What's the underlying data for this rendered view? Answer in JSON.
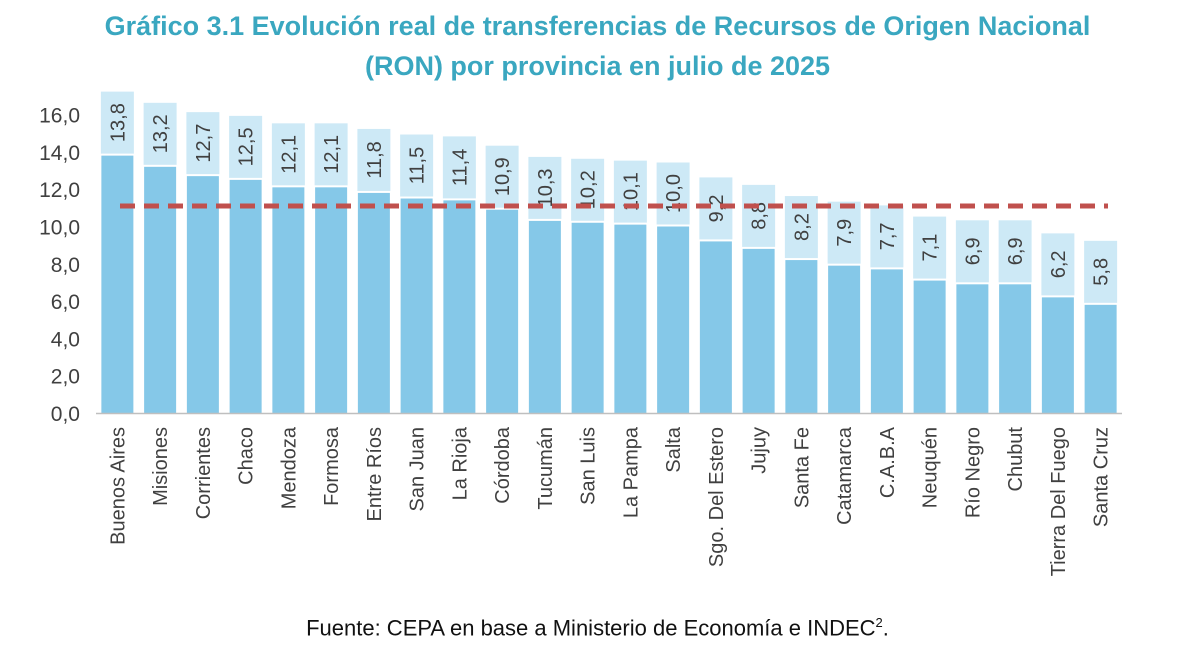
{
  "chart_data": {
    "type": "bar",
    "title_line1": "Gráfico 3.1 Evolución real de transferencias de Recursos de Origen Nacional",
    "title_line2": "(RON) por provincia en julio de 2025",
    "categories": [
      "Buenos Aires",
      "Misiones",
      "Corrientes",
      "Chaco",
      "Mendoza",
      "Formosa",
      "Entre Ríos",
      "San Juan",
      "La Rioja",
      "Córdoba",
      "Tucumán",
      "San Luis",
      "La Pampa",
      "Salta",
      "Sgo. Del Estero",
      "Jujuy",
      "Santa Fe",
      "Catamarca",
      "C.A.B.A",
      "Neuquén",
      "Río Negro",
      "Chubut",
      "Tierra Del Fuego",
      "Santa Cruz"
    ],
    "values": [
      13.8,
      13.2,
      12.7,
      12.5,
      12.1,
      12.1,
      11.8,
      11.5,
      11.4,
      10.9,
      10.3,
      10.2,
      10.1,
      10.0,
      9.2,
      8.8,
      8.2,
      7.9,
      7.7,
      7.1,
      6.9,
      6.9,
      6.2,
      5.8
    ],
    "data_labels": [
      "13,8",
      "13,2",
      "12,7",
      "12,5",
      "12,1",
      "12,1",
      "11,8",
      "11,5",
      "11,4",
      "10,9",
      "10,3",
      "10,2",
      "10,1",
      "10,0",
      "9,2",
      "8,8",
      "8,2",
      "7,9",
      "7,7",
      "7,1",
      "6,9",
      "6,9",
      "6,2",
      "5,8"
    ],
    "reference_line": 11.1,
    "ylim": [
      0,
      17
    ],
    "yticks": [
      "0,0",
      "2,0",
      "4,0",
      "6,0",
      "8,0",
      "10,0",
      "12,0",
      "14,0",
      "16,0"
    ],
    "ytick_values": [
      0,
      2,
      4,
      6,
      8,
      10,
      12,
      14,
      16
    ],
    "xlabel": "",
    "ylabel": "",
    "grid": false,
    "colors": {
      "bar": "#85c8e8",
      "label_box": "#cde9f6",
      "reference": "#c0504d",
      "title": "#3aa7c0",
      "axis": "#bfbfbf",
      "text": "#404040"
    }
  },
  "source": {
    "text": "Fuente: CEPA en base a Ministerio de Economía e INDEC",
    "superscript": "2",
    "suffix": "."
  }
}
